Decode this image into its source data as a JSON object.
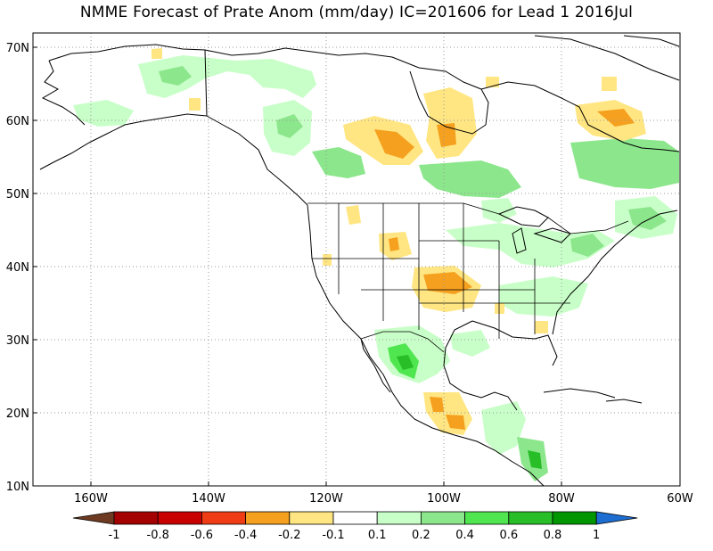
{
  "title": "NMME Forecast of Prate Anom (mm/day) IC=201606 for Lead 1 2016Jul",
  "lat_labels": [
    "70N",
    "60N",
    "50N",
    "40N",
    "30N",
    "20N",
    "10N"
  ],
  "lon_labels": [
    "160W",
    "140W",
    "120W",
    "100W",
    "80W",
    "60W"
  ],
  "colorbar": {
    "labels": [
      "-1",
      "-0.8",
      "-0.6",
      "-0.4",
      "-0.2",
      "-0.1",
      "0.1",
      "0.2",
      "0.4",
      "0.6",
      "0.8",
      "1"
    ],
    "colors": [
      "#6e3b22",
      "#a50000",
      "#c80000",
      "#f03c14",
      "#f5a01e",
      "#ffe682",
      "#ffffff",
      "#c8ffc8",
      "#8ce68c",
      "#50e650",
      "#28be28",
      "#009600",
      "#1e6ed2"
    ]
  },
  "colors": {
    "land_outline": "#000000",
    "grid": "#999999"
  }
}
